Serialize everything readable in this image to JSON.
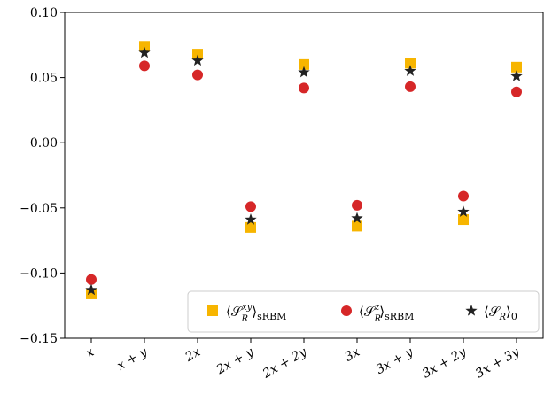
{
  "chart_data": {
    "type": "scatter",
    "categories": [
      "x",
      "x + y",
      "2x",
      "2x + y",
      "2x + 2y",
      "3x",
      "3x + y",
      "3x + 2y",
      "3x + 3y"
    ],
    "ylim": [
      -0.15,
      0.1
    ],
    "yticks": [
      0.1,
      0.05,
      0.0,
      -0.05,
      -0.1,
      -0.15
    ],
    "ytick_labels": [
      "0.10",
      "0.05",
      "0.00",
      "−0.05",
      "−0.10",
      "−0.15"
    ],
    "grid": false,
    "legend_position": "bottom-right",
    "series": [
      {
        "name": "⟨S_R^{xy}⟩_sRBM",
        "marker": "square",
        "color": "#f7b500",
        "values": [
          -0.116,
          0.074,
          0.068,
          -0.065,
          0.06,
          -0.064,
          0.061,
          -0.059,
          0.058
        ]
      },
      {
        "name": "⟨S_R^{z}⟩_sRBM",
        "marker": "circle",
        "color": "#d62728",
        "values": [
          -0.105,
          0.059,
          0.052,
          -0.049,
          0.042,
          -0.048,
          0.043,
          -0.041,
          0.039
        ]
      },
      {
        "name": "⟨S_R⟩_0",
        "marker": "star",
        "color": "#222222",
        "values": [
          -0.113,
          0.069,
          0.063,
          -0.059,
          0.054,
          -0.058,
          0.055,
          -0.053,
          0.051
        ]
      }
    ]
  }
}
